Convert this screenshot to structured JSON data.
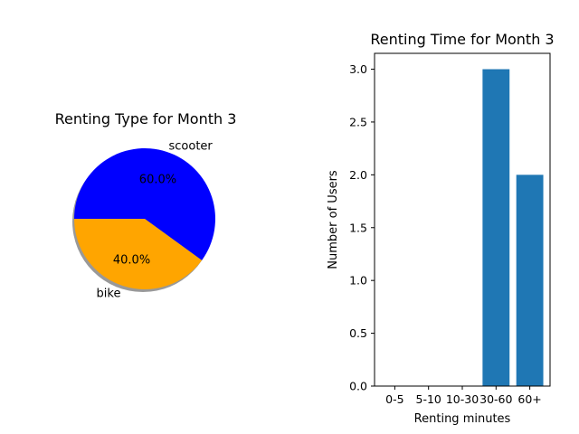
{
  "chart_data": [
    {
      "type": "pie",
      "title": "Renting Type for Month 3",
      "labels": [
        "scooter",
        "bike"
      ],
      "values": [
        60.0,
        40.0
      ],
      "percent_labels": [
        "60.0%",
        "40.0%"
      ],
      "colors": [
        "#0000ff",
        "#ffa500"
      ],
      "shadow": true
    },
    {
      "type": "bar",
      "title": "Renting Time for Month 3",
      "categories": [
        "0-5",
        "5-10",
        "10-30",
        "30-60",
        "60+"
      ],
      "values": [
        0,
        0,
        0,
        3,
        2
      ],
      "xlabel": "Renting minutes",
      "ylabel": "Number of Users",
      "ylim": [
        0,
        3.15
      ],
      "yticks": [
        "0.0",
        "0.5",
        "1.0",
        "1.5",
        "2.0",
        "2.5",
        "3.0"
      ],
      "bar_color": "#1f77b4",
      "grid": false
    }
  ]
}
